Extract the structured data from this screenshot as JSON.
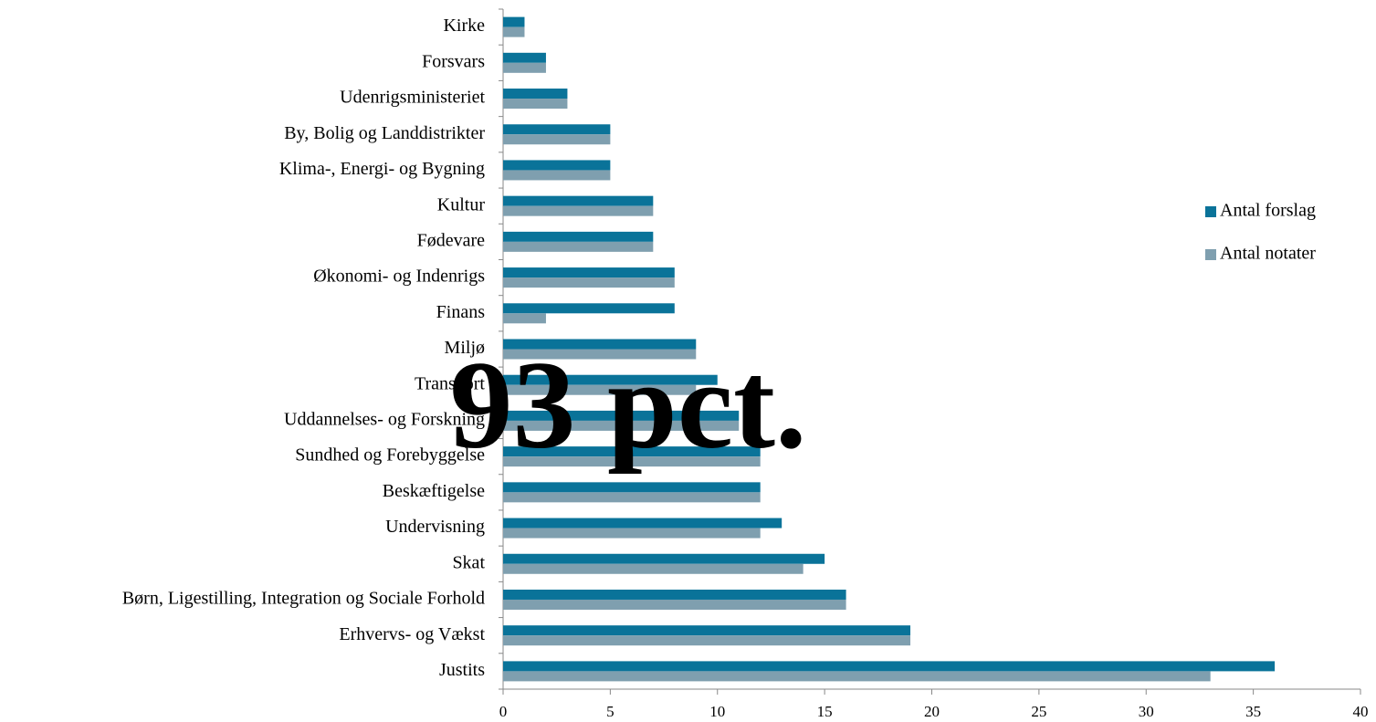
{
  "chart_data": {
    "type": "bar",
    "orientation": "horizontal",
    "categories": [
      "Kirke",
      "Forsvars",
      "Udenrigsministeriet",
      "By, Bolig og Landdistrikter",
      "Klima-, Energi- og Bygning",
      "Kultur",
      "Fødevare",
      "Økonomi- og Indenrigs",
      "Finans",
      "Miljø",
      "Transport",
      "Uddannelses- og Forskning",
      "Sundhed og Forebyggelse",
      "Beskæftigelse",
      "Undervisning",
      "Skat",
      "Børn, Ligestilling, Integration og Sociale Forhold",
      "Erhvervs- og Vækst",
      "Justits"
    ],
    "series": [
      {
        "name": "Antal forslag",
        "color": "#0a7399",
        "values": [
          1,
          2,
          3,
          5,
          5,
          7,
          7,
          8,
          8,
          9,
          10,
          11,
          12,
          12,
          13,
          15,
          16,
          19,
          36
        ]
      },
      {
        "name": "Antal notater",
        "color": "#7f9faf",
        "values": [
          1,
          2,
          3,
          5,
          5,
          7,
          7,
          8,
          2,
          9,
          9,
          11,
          12,
          12,
          12,
          14,
          16,
          19,
          33
        ]
      }
    ],
    "xlim": [
      0,
      40
    ],
    "xticks": [
      0,
      5,
      10,
      15,
      20,
      25,
      30,
      35,
      40
    ],
    "legend": "right",
    "annotation": "93 pct."
  }
}
